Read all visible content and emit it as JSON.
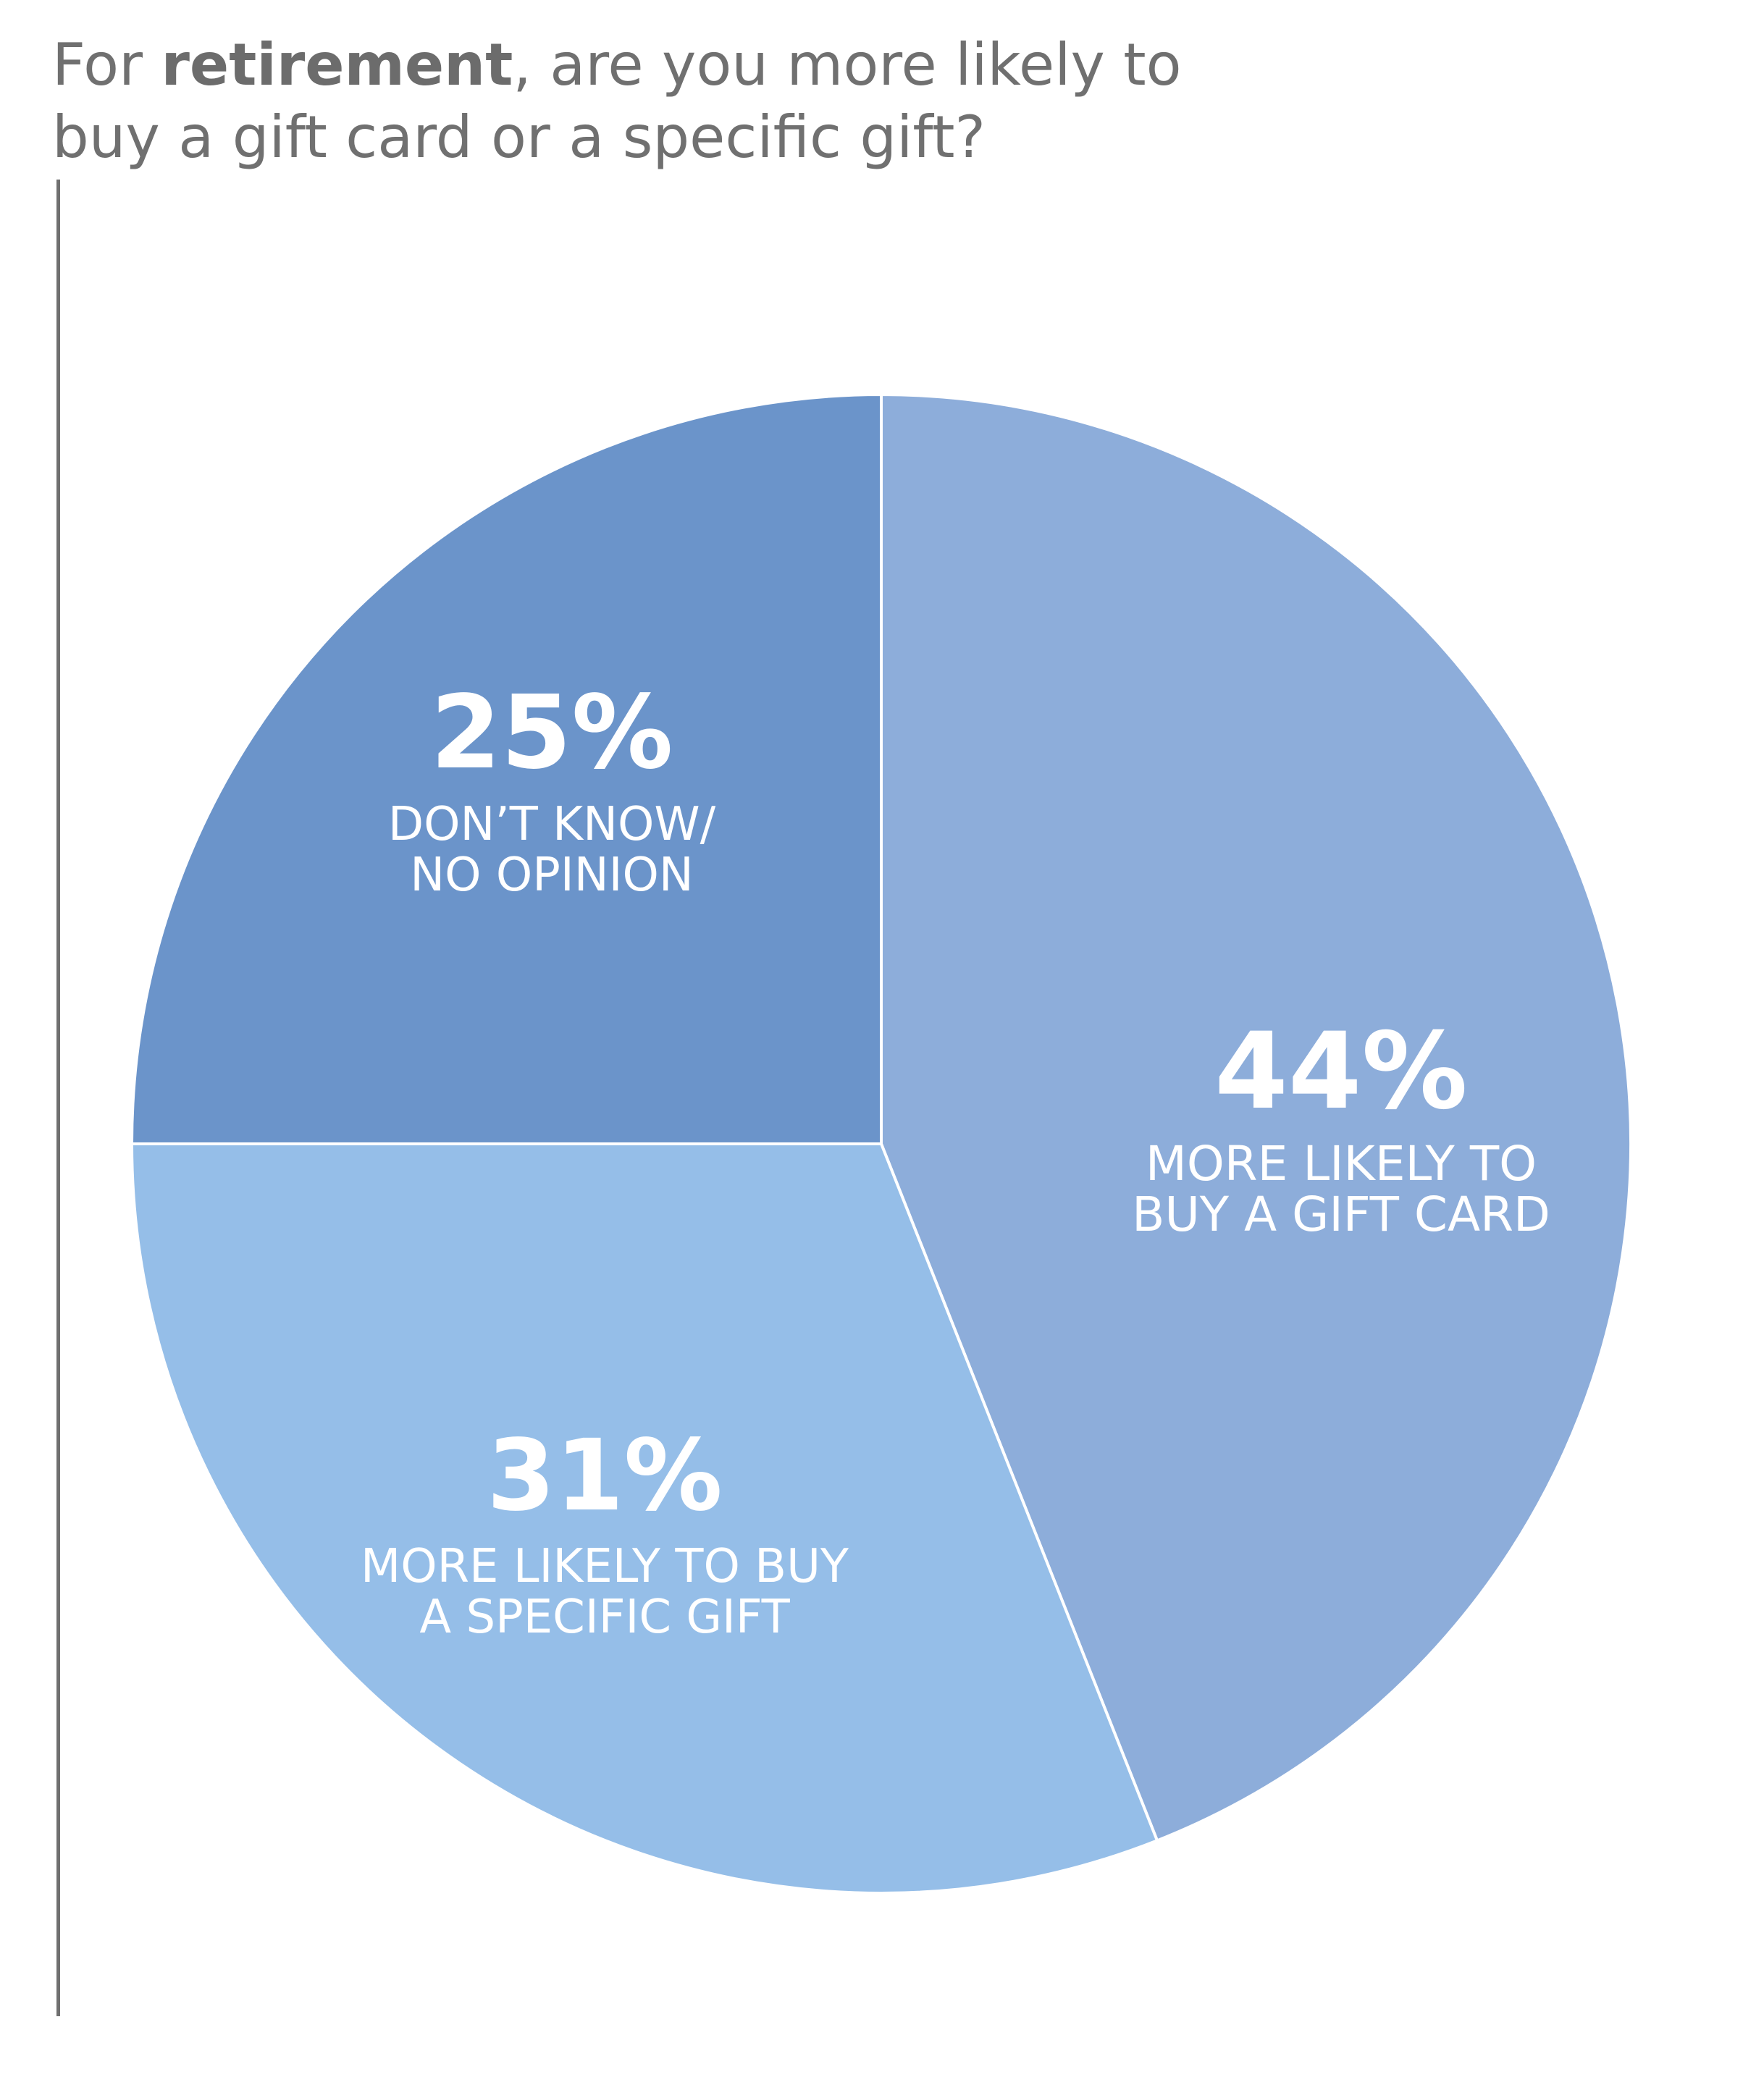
{
  "title": {
    "line1_pre": "For ",
    "line1_bold": "retirement",
    "line1_post": ", are you more likely to",
    "line2": "buy a gift card or a specific gift?"
  },
  "chart_data": {
    "type": "pie",
    "unit": "%",
    "slices": [
      {
        "value": 44,
        "pct_label": "44%",
        "label_lines": [
          "MORE LIKELY TO",
          "BUY A GIFT CARD"
        ],
        "color": "#8dadda"
      },
      {
        "value": 31,
        "pct_label": "31%",
        "label_lines": [
          "MORE LIKELY TO BUY",
          "A SPECIFIC GIFT"
        ],
        "color": "#95bee8"
      },
      {
        "value": 25,
        "pct_label": "25%",
        "label_lines": [
          "DON’T KNOW/",
          "NO OPINION"
        ],
        "color": "#6b94ca"
      }
    ],
    "start": "12 o'clock",
    "direction": "clockwise"
  }
}
